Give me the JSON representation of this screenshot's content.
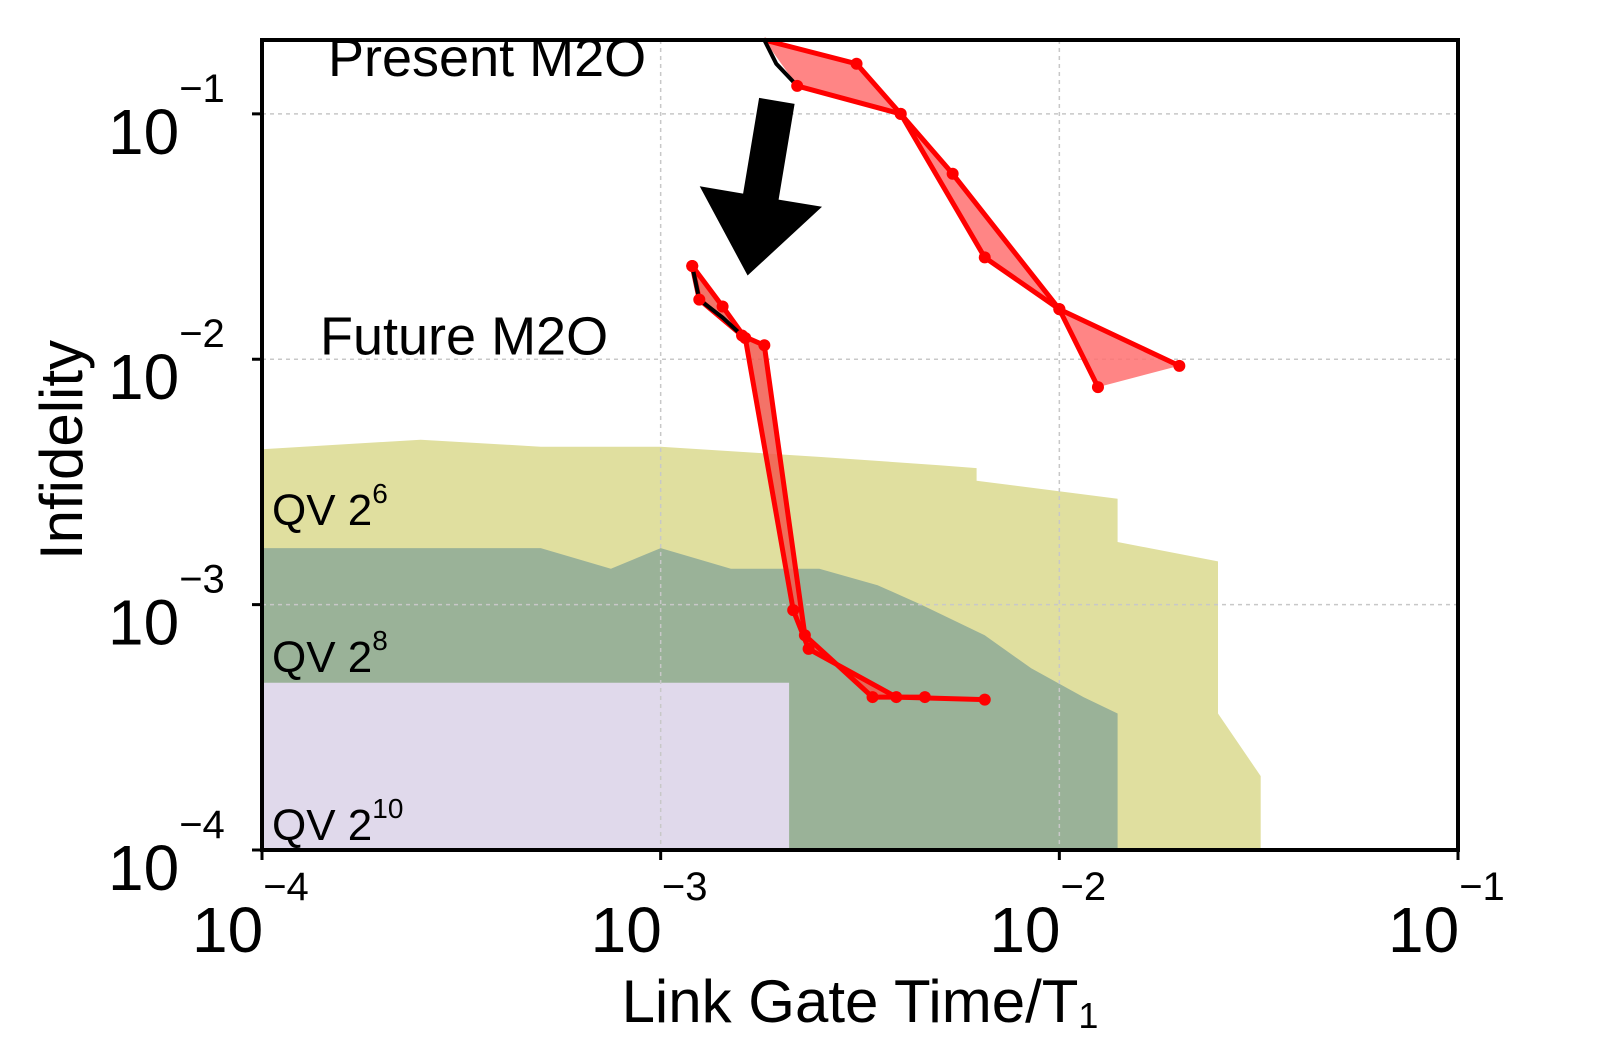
{
  "chart_data": {
    "type": "area",
    "xlabel": "Link Gate Time/T",
    "xlabel_sub": "1",
    "ylabel": "Infidelity",
    "x_scale": "log",
    "y_scale": "log",
    "xlim": [
      0.0001,
      0.1
    ],
    "ylim": [
      0.0001,
      0.2
    ],
    "grid": true,
    "x_ticks": [
      {
        "value": 0.0001,
        "base": "10",
        "exp": "−4"
      },
      {
        "value": 0.001,
        "base": "10",
        "exp": "−3"
      },
      {
        "value": 0.01,
        "base": "10",
        "exp": "−2"
      },
      {
        "value": 0.1,
        "base": "10",
        "exp": "−1"
      }
    ],
    "y_ticks": [
      {
        "value": 0.0001,
        "base": "10",
        "exp": "−4"
      },
      {
        "value": 0.001,
        "base": "10",
        "exp": "−3"
      },
      {
        "value": 0.01,
        "base": "10",
        "exp": "−2"
      },
      {
        "value": 0.1,
        "base": "10",
        "exp": "−1"
      }
    ],
    "regions": [
      {
        "label": "QV 2",
        "label_exp": "6",
        "label_value": [
          0.0001,
          0.0025
        ],
        "color": "#e0df9f",
        "upper": [
          [
            0.0001,
            0.0043
          ],
          [
            0.00025,
            0.0047
          ],
          [
            0.0005,
            0.0044
          ],
          [
            0.001,
            0.0044
          ],
          [
            0.0025,
            0.004
          ],
          [
            0.005,
            0.0037
          ],
          [
            0.0062,
            0.0036
          ],
          [
            0.0062,
            0.0032
          ],
          [
            0.014,
            0.0027
          ],
          [
            0.014,
            0.0018
          ],
          [
            0.025,
            0.0015
          ],
          [
            0.025,
            0.00036
          ],
          [
            0.032,
            0.0002
          ],
          [
            0.032,
            0.0001
          ]
        ]
      },
      {
        "label": "QV 2",
        "label_exp": "8",
        "label_value": [
          0.0001,
          0.00063
        ],
        "color": "#9ab298",
        "upper": [
          [
            0.0001,
            0.0017
          ],
          [
            0.0005,
            0.0017
          ],
          [
            0.00075,
            0.0014
          ],
          [
            0.001,
            0.0017
          ],
          [
            0.0015,
            0.0014
          ],
          [
            0.0025,
            0.0014
          ],
          [
            0.0035,
            0.0012
          ],
          [
            0.0045,
            0.001
          ],
          [
            0.0065,
            0.00075
          ],
          [
            0.0085,
            0.00055
          ],
          [
            0.0115,
            0.00042
          ],
          [
            0.014,
            0.00036
          ],
          [
            0.014,
            0.0001
          ]
        ]
      },
      {
        "label": "QV 2",
        "label_exp": "10",
        "label_value": [
          0.0001,
          0.00013
        ],
        "color": "#e0d9eb",
        "upper": [
          [
            0.0001,
            0.00048
          ],
          [
            0.0021,
            0.00048
          ],
          [
            0.0021,
            0.0001
          ]
        ]
      }
    ],
    "series": [
      {
        "name": "Present M2O",
        "label_value": [
          0.00015,
          0.13
        ],
        "fill": "#ff7070",
        "lower": [
          [
            0.0022,
            0.13
          ],
          [
            0.004,
            0.1
          ],
          [
            0.0065,
            0.026
          ],
          [
            0.01,
            0.016
          ],
          [
            0.02,
            0.0094
          ]
        ],
        "upper": [
          [
            0.00182,
            0.2
          ],
          [
            0.0031,
            0.16
          ],
          [
            0.004,
            0.1
          ],
          [
            0.0054,
            0.057
          ],
          [
            0.01,
            0.016
          ],
          [
            0.0125,
            0.0077
          ]
        ],
        "black_curve": [
          [
            0.00182,
            0.2
          ],
          [
            0.00195,
            0.16
          ],
          [
            0.0022,
            0.13
          ]
        ]
      },
      {
        "name": "Future M2O",
        "label_value": [
          0.00015,
          0.0126
        ],
        "fill": "#f15a4e",
        "lower": [
          [
            0.0012,
            0.024
          ],
          [
            0.00143,
            0.0164
          ],
          [
            0.00163,
            0.0122
          ],
          [
            0.00215,
            0.00095
          ],
          [
            0.00235,
            0.00066
          ],
          [
            0.0039,
            0.00042
          ],
          [
            0.0065,
            0.00041
          ]
        ],
        "upper": [
          [
            0.0012,
            0.024
          ],
          [
            0.00125,
            0.0175
          ],
          [
            0.0016,
            0.0125
          ],
          [
            0.00182,
            0.0114
          ],
          [
            0.0023,
            0.00075
          ],
          [
            0.0034,
            0.00042
          ],
          [
            0.0046,
            0.00042
          ]
        ],
        "black_curve": [
          [
            0.0012,
            0.024
          ],
          [
            0.00125,
            0.0175
          ],
          [
            0.00143,
            0.0148
          ],
          [
            0.0016,
            0.0125
          ]
        ]
      }
    ],
    "arrow": {
      "from": [
        0.0023,
        0.13
      ],
      "to": [
        0.00135,
        0.023
      ]
    }
  }
}
